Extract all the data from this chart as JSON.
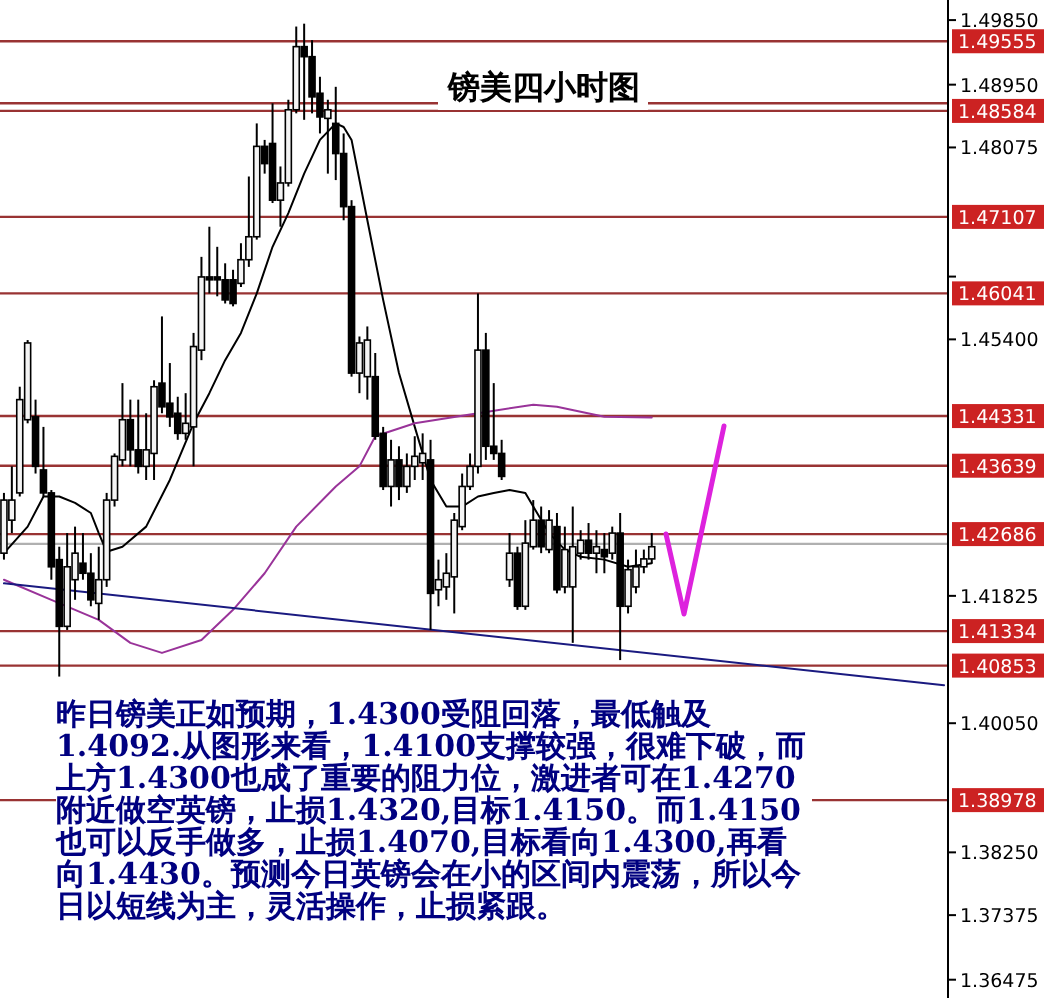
{
  "chart_data": {
    "type": "candlestick",
    "title": "镑美四小时图",
    "annotations": [
      "昨日镑美正如预期，1.4300受阻回落，最低触及1.4092.从图形来看，1.4100支撑较强，很难下破，而上方1.4300也成了重要的阻力位，激进者可在1.4270附近做空英镑，止损1.4320,目标1.4150。而1.4150也可以反手做多，止损1.4070,目标看向1.4300,再看向1.4430。预测今日英镑会在小的区间内震荡，所以今日以短线为主，灵活操作，止损紧跟。"
    ],
    "categories": [
      null,
      null,
      null,
      null,
      null,
      null,
      null,
      null,
      null,
      null,
      null,
      null,
      null,
      null,
      null,
      null,
      null,
      null,
      null,
      null,
      null,
      null,
      null,
      null,
      null,
      null,
      null,
      null,
      null,
      null,
      null,
      null,
      null,
      null,
      null,
      null,
      null,
      null,
      null,
      null,
      null,
      null,
      null,
      null,
      null,
      null,
      null,
      null,
      null,
      null,
      null,
      null,
      null,
      null,
      null,
      null,
      null,
      null,
      null,
      null,
      null,
      null,
      null,
      null,
      null,
      null,
      null,
      null,
      null,
      null,
      null,
      null,
      null,
      null,
      null,
      null,
      null,
      null,
      null,
      null,
      null,
      null,
      null,
      null,
      null,
      null,
      null,
      null,
      null,
      null,
      null,
      null,
      null,
      null,
      null,
      null,
      null,
      null,
      null,
      null,
      null,
      null,
      null,
      null,
      null,
      null,
      null,
      null,
      null,
      null,
      null,
      null,
      null,
      null,
      null,
      null,
      null,
      null,
      null,
      null
    ],
    "ohlc": [
      [
        1.4242,
        1.4326,
        1.4233,
        1.4316
      ],
      [
        1.4288,
        1.4363,
        1.427,
        1.4316
      ],
      [
        1.4326,
        1.4474,
        1.4321,
        1.4456
      ],
      [
        1.4428,
        1.4539,
        1.4423,
        1.4535
      ],
      [
        1.4432,
        1.4456,
        1.4353,
        1.4363
      ],
      [
        1.4358,
        1.4418,
        1.4321,
        1.4326
      ],
      [
        1.4326,
        1.433,
        1.4205,
        1.4223
      ],
      [
        1.4233,
        1.4251,
        1.407,
        1.414
      ],
      [
        1.414,
        1.427,
        1.4135,
        1.4223
      ],
      [
        1.4205,
        1.4279,
        1.4177,
        1.4242
      ],
      [
        1.4228,
        1.427,
        1.4205,
        1.4214
      ],
      [
        1.4214,
        1.4242,
        1.4168,
        1.4177
      ],
      [
        1.4172,
        1.4251,
        1.4149,
        1.4205
      ],
      [
        1.4205,
        1.4326,
        1.4195,
        1.4316
      ],
      [
        1.4316,
        1.4381,
        1.4307,
        1.4377
      ],
      [
        1.4372,
        1.4479,
        1.4363,
        1.4428
      ],
      [
        1.4428,
        1.4456,
        1.4363,
        1.4386
      ],
      [
        1.4386,
        1.4456,
        1.4353,
        1.4363
      ],
      [
        1.4363,
        1.4437,
        1.4344,
        1.4386
      ],
      [
        1.4381,
        1.4483,
        1.4344,
        1.4474
      ],
      [
        1.4479,
        1.4572,
        1.4437,
        1.4446
      ],
      [
        1.4451,
        1.4507,
        1.4418,
        1.4432
      ],
      [
        1.4437,
        1.446,
        1.44,
        1.4409
      ],
      [
        1.4409,
        1.4465,
        1.44,
        1.4423
      ],
      [
        1.4418,
        1.4549,
        1.4363,
        1.453
      ],
      [
        1.4525,
        1.4655,
        1.4511,
        1.4627
      ],
      [
        1.4627,
        1.4697,
        1.4604,
        1.4623
      ],
      [
        1.4627,
        1.4669,
        1.46,
        1.4623
      ],
      [
        1.4623,
        1.4646,
        1.459,
        1.4595
      ],
      [
        1.4623,
        1.4637,
        1.4586,
        1.459
      ],
      [
        1.4618,
        1.4674,
        1.4613,
        1.4651
      ],
      [
        1.4651,
        1.4767,
        1.4641,
        1.4683
      ],
      [
        1.4683,
        1.4841,
        1.4679,
        1.4809
      ],
      [
        1.4809,
        1.4818,
        1.4771,
        1.4785
      ],
      [
        1.4813,
        1.4869,
        1.473,
        1.4734
      ],
      [
        1.4734,
        1.4781,
        1.4697,
        1.4758
      ],
      [
        1.4758,
        1.4874,
        1.4753,
        1.486
      ],
      [
        1.486,
        1.4976,
        1.4855,
        1.4948
      ],
      [
        1.4948,
        1.498,
        1.4846,
        1.4934
      ],
      [
        1.4934,
        1.4957,
        1.4855,
        1.4878
      ],
      [
        1.4883,
        1.4906,
        1.4827,
        1.485
      ],
      [
        1.4848,
        1.4874,
        1.4771,
        1.486
      ],
      [
        1.4841,
        1.4892,
        1.4762,
        1.4799
      ],
      [
        1.4799,
        1.4827,
        1.4706,
        1.4725
      ],
      [
        1.4725,
        1.4734,
        1.4488,
        1.4493
      ],
      [
        1.4493,
        1.4544,
        1.4465,
        1.4535
      ],
      [
        1.4488,
        1.4558,
        1.4456,
        1.4539
      ],
      [
        1.4488,
        1.4521,
        1.44,
        1.4405
      ],
      [
        1.4409,
        1.4418,
        1.433,
        1.4335
      ],
      [
        1.4335,
        1.44,
        1.4307,
        1.4372
      ],
      [
        1.4372,
        1.4391,
        1.4316,
        1.4335
      ],
      [
        1.4335,
        1.4381,
        1.4326,
        1.4363
      ],
      [
        1.4363,
        1.4405,
        1.4344,
        1.4377
      ],
      [
        1.4368,
        1.4409,
        1.4344,
        1.4381
      ],
      [
        1.4372,
        1.44,
        1.4135,
        1.4186
      ],
      [
        1.4191,
        1.4233,
        1.4168,
        1.4205
      ],
      [
        1.4195,
        1.4242,
        1.4177,
        1.4214
      ],
      [
        1.4209,
        1.4298,
        1.4158,
        1.4288
      ],
      [
        1.4279,
        1.4353,
        1.4274,
        1.4335
      ],
      [
        1.4335,
        1.4381,
        1.433,
        1.4363
      ],
      [
        1.4363,
        1.4604,
        1.4353,
        1.4525
      ],
      [
        1.4525,
        1.4549,
        1.4372,
        1.4391
      ],
      [
        1.4391,
        1.4479,
        1.4372,
        1.4381
      ],
      [
        1.4381,
        1.44,
        1.4344,
        1.4349
      ],
      [
        1.4205,
        1.427,
        1.4195,
        1.4242
      ],
      [
        1.4242,
        1.4251,
        1.4163,
        1.4168
      ],
      [
        1.4168,
        1.4288,
        1.4163,
        1.4256
      ],
      [
        1.4251,
        1.4316,
        1.4247,
        1.4288
      ],
      [
        1.4288,
        1.4307,
        1.4242,
        1.4251
      ],
      [
        1.4247,
        1.4302,
        1.4242,
        1.4288
      ],
      [
        1.4279,
        1.4298,
        1.4186,
        1.4191
      ],
      [
        1.4195,
        1.4279,
        1.4186,
        1.4247
      ],
      [
        1.4195,
        1.4307,
        1.4117,
        1.4251
      ],
      [
        1.4242,
        1.4274,
        1.4233,
        1.426
      ],
      [
        1.426,
        1.4284,
        1.4233,
        1.4242
      ],
      [
        1.4242,
        1.4274,
        1.4214,
        1.4251
      ],
      [
        1.4247,
        1.427,
        1.4214,
        1.4237
      ],
      [
        1.4242,
        1.4279,
        1.4233,
        1.427
      ],
      [
        1.427,
        1.4298,
        1.4093,
        1.4168
      ],
      [
        1.4168,
        1.4233,
        1.4158,
        1.4219
      ],
      [
        1.4195,
        1.4247,
        1.4186,
        1.4223
      ],
      [
        1.4223,
        1.4247,
        1.4214,
        1.4234
      ],
      [
        1.4234,
        1.427,
        1.4228,
        1.4251
      ],
      null,
      null,
      null,
      null,
      null,
      null,
      null,
      null,
      null,
      null,
      null,
      null,
      null,
      null,
      null,
      null,
      null,
      null,
      null,
      null,
      null,
      null,
      null,
      null,
      null,
      null,
      null,
      null,
      null,
      null,
      null,
      null,
      null,
      null,
      null,
      null,
      null
    ],
    "series": [
      {
        "type": "line",
        "color": "#000000",
        "values": [
          1.4242,
          null,
          null,
          1.4279,
          null,
          1.4321,
          null,
          1.4321,
          null,
          1.4312,
          null,
          1.4298,
          1.427,
          1.4244,
          null,
          1.4251,
          null,
          null,
          1.4279,
          null,
          null,
          1.4344,
          null,
          null,
          1.4423,
          null,
          1.4465,
          null,
          1.4511,
          null,
          1.4549,
          null,
          1.4604,
          null,
          1.4669,
          null,
          1.4716,
          null,
          1.4771,
          null,
          1.4818,
          null,
          1.4841,
          1.4836,
          1.4818,
          null,
          1.4706,
          null,
          1.4595,
          null,
          1.4493,
          null,
          1.4418,
          null,
          1.4344,
          null,
          1.4307,
          null,
          1.4307,
          null,
          1.4321,
          null,
          1.4326,
          null,
          1.433,
          null,
          1.4326,
          1.4307,
          null,
          1.427,
          null,
          1.4247,
          null,
          1.4237,
          null,
          null,
          1.4233,
          null,
          null,
          1.4223,
          null,
          null,
          1.4228,
          null,
          null,
          null,
          null,
          null,
          null,
          null,
          null,
          null,
          null,
          null,
          null,
          null,
          null,
          null,
          null,
          null,
          null,
          null,
          null,
          null,
          null,
          null,
          null,
          null,
          null,
          null,
          null,
          null,
          null,
          null,
          null,
          null,
          null,
          null,
          null,
          null
        ]
      },
      {
        "type": "line",
        "color": "#993399",
        "values": [
          1.4205,
          null,
          null,
          null,
          null,
          null,
          1.4177,
          null,
          null,
          null,
          null,
          null,
          1.4149,
          null,
          null,
          null,
          1.4117,
          null,
          null,
          null,
          1.4103,
          null,
          null,
          null,
          null,
          1.4121,
          null,
          null,
          null,
          1.4163,
          null,
          null,
          null,
          1.4214,
          null,
          null,
          null,
          1.4279,
          null,
          null,
          null,
          null,
          1.4335,
          null,
          null,
          1.4363,
          null,
          1.4405,
          null,
          null,
          null,
          null,
          1.4423,
          null,
          null,
          null,
          null,
          null,
          null,
          null,
          1.4437,
          null,
          null,
          null,
          null,
          null,
          null,
          1.4449,
          null,
          null,
          1.4446,
          null,
          null,
          null,
          null,
          null,
          1.4432,
          null,
          null,
          null,
          null,
          null,
          1.4431,
          null,
          null,
          null,
          null,
          null,
          null,
          null,
          null,
          null,
          null,
          null,
          null,
          null,
          null,
          null,
          null,
          null,
          null,
          null,
          null,
          null,
          null,
          null,
          null,
          null,
          null,
          null,
          null,
          null,
          null,
          null,
          null,
          null,
          null,
          null,
          null,
          null
        ]
      },
      {
        "type": "line",
        "color": "#1a1a80",
        "values": [
          1.42,
          null,
          null,
          null,
          null,
          null,
          null,
          null,
          null,
          null,
          null,
          null,
          null,
          null,
          null,
          null,
          null,
          null,
          null,
          null,
          null,
          null,
          null,
          null,
          null,
          null,
          null,
          null,
          null,
          null,
          null,
          null,
          null,
          null,
          null,
          null,
          null,
          null,
          null,
          null,
          null,
          null,
          null,
          null,
          null,
          null,
          null,
          null,
          null,
          null,
          null,
          null,
          null,
          null,
          null,
          null,
          null,
          null,
          null,
          null,
          null,
          null,
          null,
          null,
          null,
          null,
          null,
          null,
          null,
          null,
          null,
          null,
          null,
          null,
          null,
          null,
          null,
          null,
          null,
          null,
          null,
          null,
          null,
          null,
          null,
          null,
          null,
          null,
          null,
          null,
          null,
          null,
          null,
          null,
          null,
          null,
          null,
          null,
          null,
          null,
          null,
          null,
          null,
          null,
          null,
          null,
          null,
          null,
          null,
          null,
          null,
          null,
          null,
          null,
          null,
          null,
          null,
          null,
          null,
          1.4058
        ]
      }
    ],
    "ylim": [
      1.3622,
      1.5013
    ],
    "yticks": [
      {
        "value": 1.4985,
        "label": "1.49850"
      },
      {
        "value": 1.4895,
        "label": "1.48950"
      },
      {
        "value": 1.48075,
        "label": "1.48075"
      },
      {
        "value": 1.46275,
        "label": null
      },
      {
        "value": 1.454,
        "label": "1.45400"
      },
      {
        "value": 1.41825,
        "label": "1.41825"
      },
      {
        "value": 1.4005,
        "label": "1.40050"
      },
      {
        "value": 1.3825,
        "label": "1.38250"
      },
      {
        "value": 1.37375,
        "label": "1.37375"
      },
      {
        "value": 1.36475,
        "label": "1.36475"
      }
    ],
    "tick_labels": "y",
    "ref_lines": [
      {
        "axis": "y",
        "value": 1.49555,
        "label": "1.49555",
        "color": "#993333"
      },
      {
        "axis": "y",
        "value": 1.4869,
        "color": "#993333"
      },
      {
        "axis": "y",
        "value": 1.48584,
        "label": "1.48584",
        "color": "#993333"
      },
      {
        "axis": "y",
        "value": 1.47107,
        "label": "1.47107",
        "color": "#993333"
      },
      {
        "axis": "y",
        "value": 1.46041,
        "label": "1.46041",
        "color": "#993333"
      },
      {
        "axis": "y",
        "value": 1.44331,
        "label": "1.44331",
        "color": "#993333"
      },
      {
        "axis": "y",
        "value": 1.43639,
        "label": "1.43639",
        "color": "#993333"
      },
      {
        "axis": "y",
        "value": 1.42686,
        "label": "1.42686",
        "color": "#993333"
      },
      {
        "axis": "y",
        "value": 1.4255,
        "color": "#b0b0b0"
      },
      {
        "axis": "y",
        "value": 1.41334,
        "label": "1.41334",
        "color": "#993333"
      },
      {
        "axis": "y",
        "value": 1.40853,
        "label": "1.40853",
        "color": "#993333"
      },
      {
        "axis": "y",
        "value": 1.38978,
        "label": "1.38978",
        "color": "#993333"
      }
    ]
  }
}
